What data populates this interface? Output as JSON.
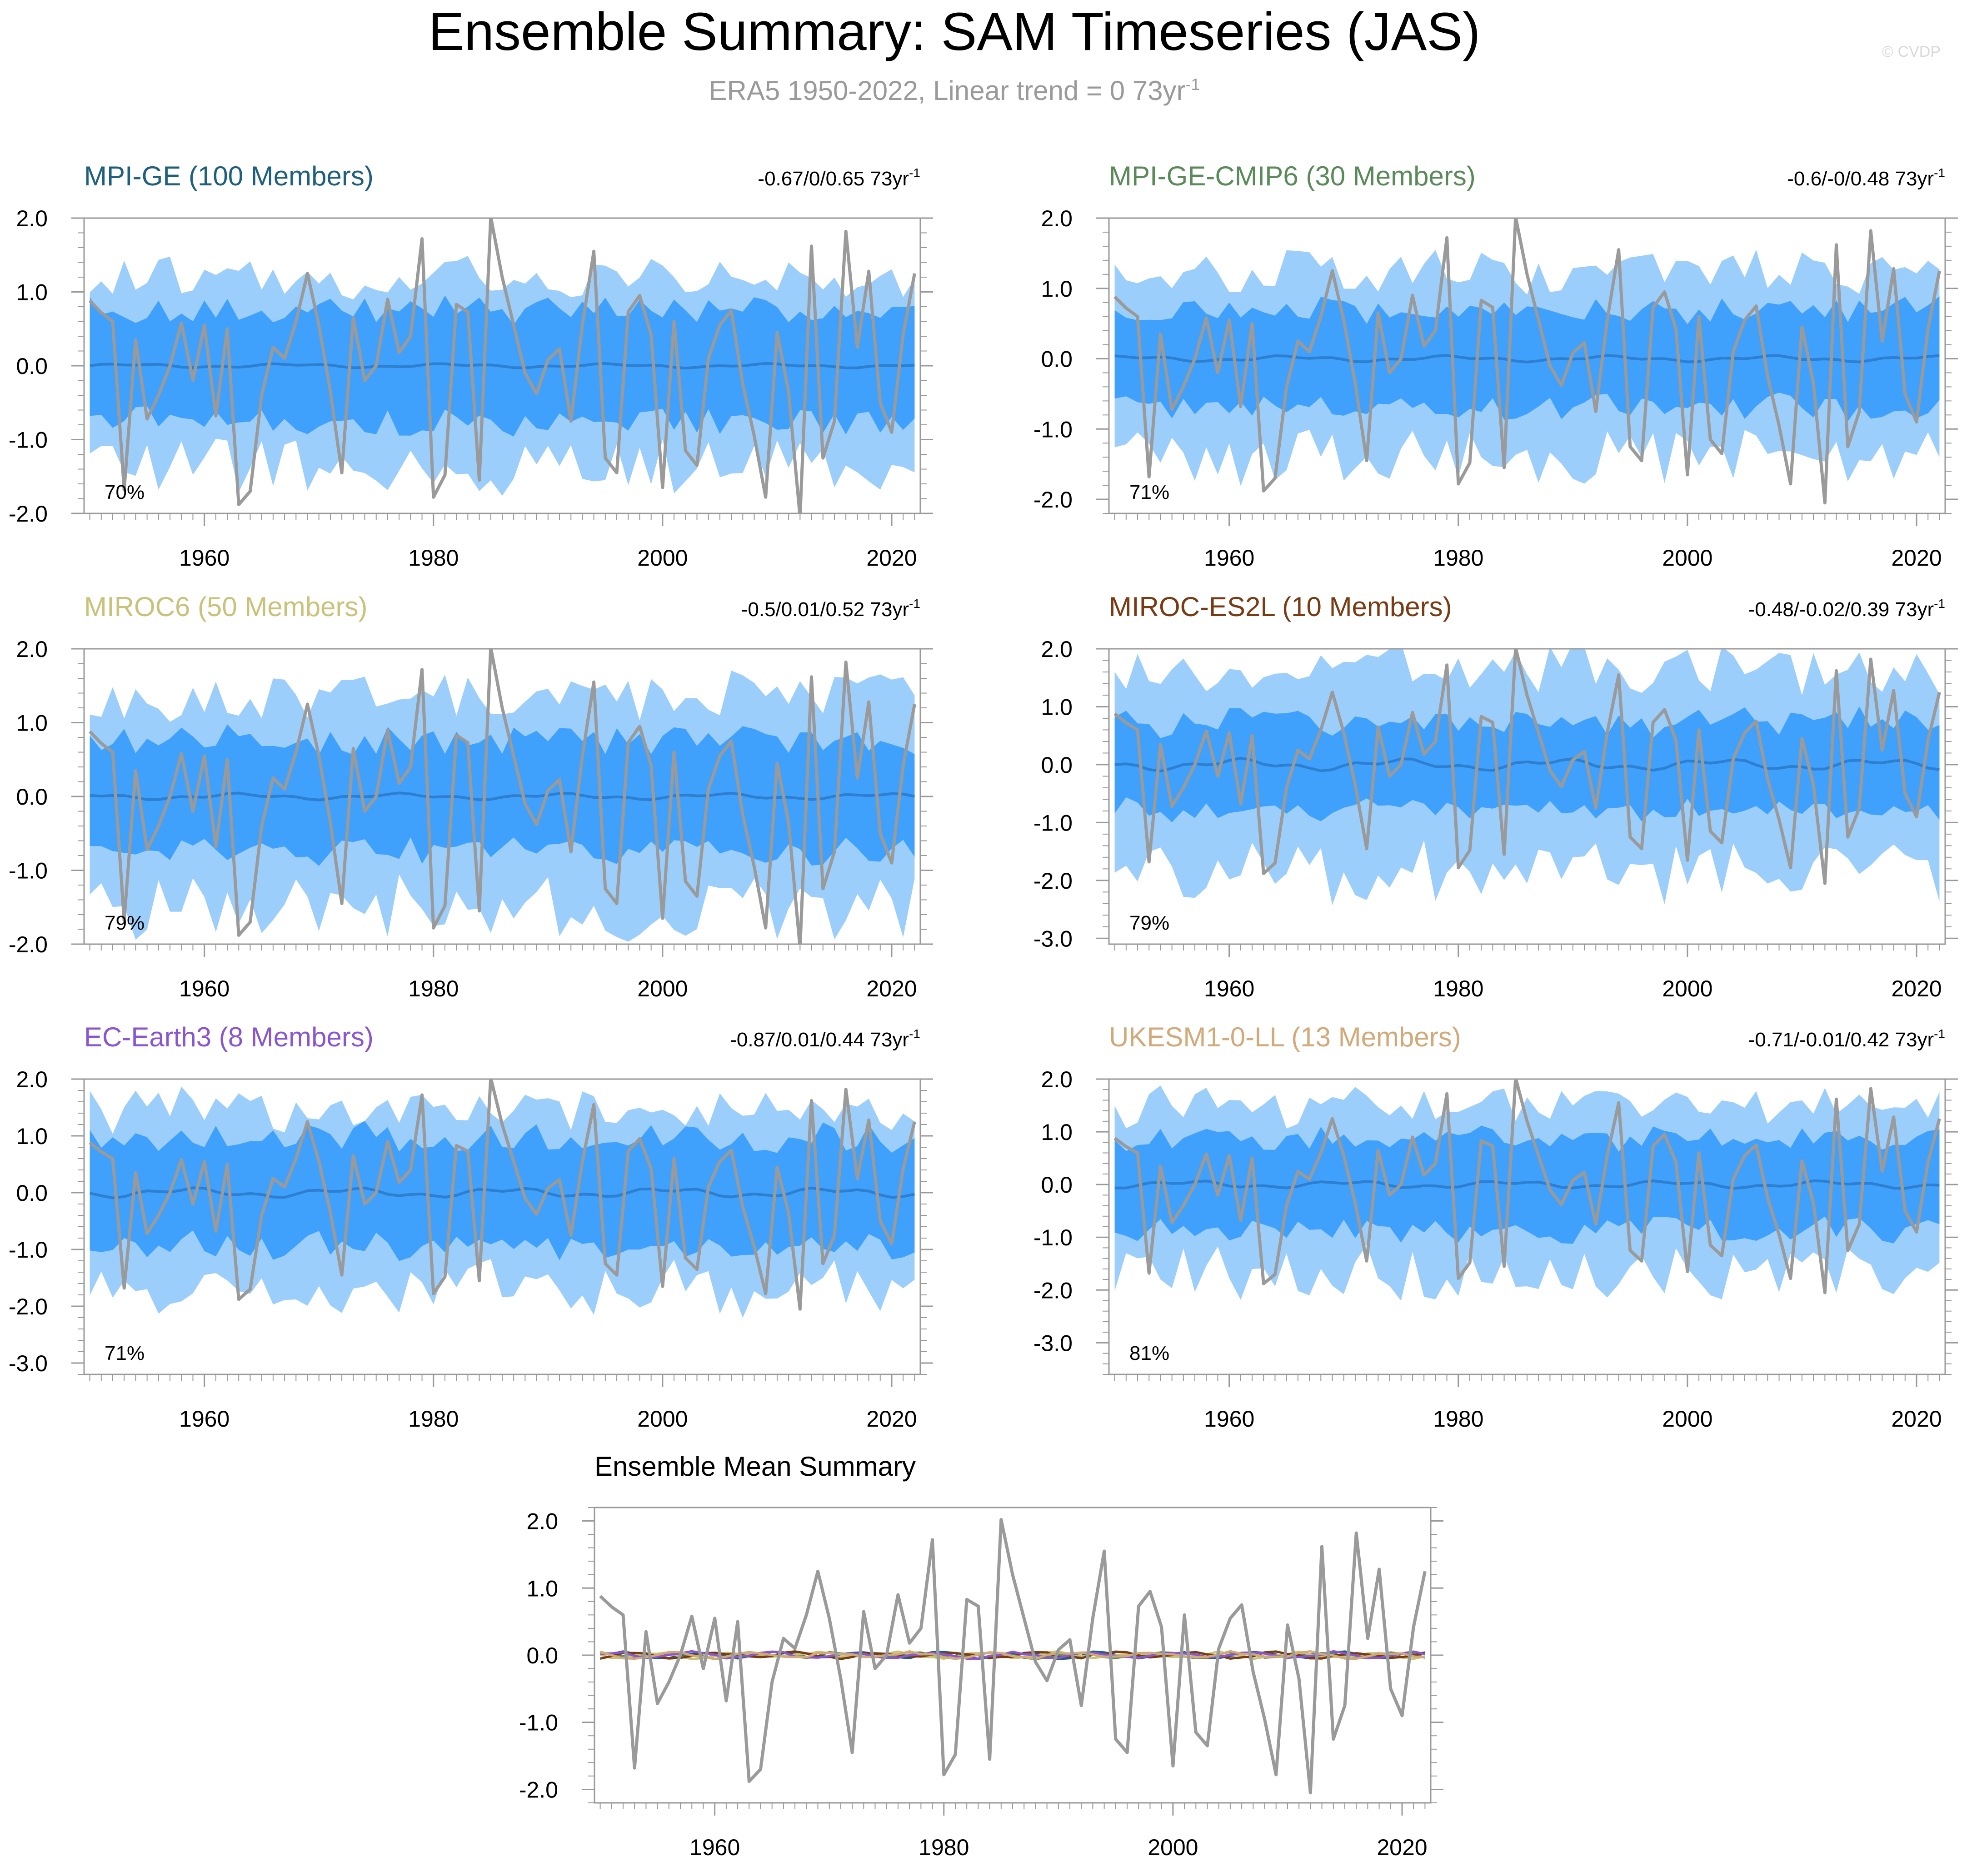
{
  "title": "Ensemble Summary: SAM Timeseries (JAS)",
  "subtitle": "ERA5 1950-2022, Linear trend = 0 73yr",
  "subtitle_sup": "-1",
  "watermark": "© CVDP",
  "colors": {
    "outer_band": "#9ccefc",
    "inner_band": "#3fa1fc",
    "ensemble_mean": "#2e7fd0",
    "observed": "#9a9a9a"
  },
  "chart_data": [
    {
      "type": "area",
      "id": "mpi-ge",
      "title": "MPI-GE (100 Members)",
      "title_color": "#1e5f7c",
      "trend": "-0.67/0/0.65 73yr",
      "trend_sup": "-1",
      "percent": "70%",
      "ylim": [
        -2.0,
        2.0
      ],
      "yticks": [
        "2.0",
        "1.0",
        "0.0",
        "-1.0",
        "-2.0"
      ],
      "ytick_values": [
        2,
        1,
        0,
        -1,
        -2
      ],
      "xticks": [
        "1960",
        "1980",
        "2000",
        "2020"
      ],
      "outer_half_width": 1.3,
      "inner_half_width": 0.75,
      "mean_amplitude": 0.02
    },
    {
      "type": "area",
      "id": "mpi-ge-cmip6",
      "title": "MPI-GE-CMIP6 (30 Members)",
      "title_color": "#5a8a5a",
      "trend": "-0.6/-0/0.48 73yr",
      "trend_sup": "-1",
      "percent": "71%",
      "ylim": [
        -2.2,
        2.0
      ],
      "yticks": [
        "2.0",
        "1.0",
        "0.0",
        "-1.0",
        "-2.0"
      ],
      "ytick_values": [
        2,
        1,
        0,
        -1,
        -2
      ],
      "xticks": [
        "1960",
        "1980",
        "2000",
        "2020"
      ],
      "outer_half_width": 1.35,
      "inner_half_width": 0.7,
      "mean_amplitude": 0.03
    },
    {
      "type": "area",
      "id": "miroc6",
      "title": "MIROC6 (50 Members)",
      "title_color": "#c9c27a",
      "trend": "-0.5/0.01/0.52 73yr",
      "trend_sup": "-1",
      "percent": "79%",
      "ylim": [
        -2.0,
        2.0
      ],
      "yticks": [
        "2.0",
        "1.0",
        "0.0",
        "-1.0",
        "-2.0"
      ],
      "ytick_values": [
        2,
        1,
        0,
        -1,
        -2
      ],
      "xticks": [
        "1960",
        "1980",
        "2000",
        "2020"
      ],
      "outer_half_width": 1.45,
      "inner_half_width": 0.75,
      "mean_amplitude": 0.03
    },
    {
      "type": "area",
      "id": "miroc-es2l",
      "title": "MIROC-ES2L (10 Members)",
      "title_color": "#7a3a12",
      "trend": "-0.48/-0.02/0.39 73yr",
      "trend_sup": "-1",
      "percent": "79%",
      "ylim": [
        -3.1,
        2.0
      ],
      "yticks": [
        "2.0",
        "1.0",
        "0.0",
        "-1.0",
        "-2.0",
        "-3.0"
      ],
      "ytick_values": [
        2,
        1,
        0,
        -1,
        -2,
        -3
      ],
      "xticks": [
        "1960",
        "1980",
        "2000",
        "2020"
      ],
      "outer_half_width": 1.75,
      "inner_half_width": 0.75,
      "mean_amplitude": 0.07
    },
    {
      "type": "area",
      "id": "ec-earth3",
      "title": "EC-Earth3 (8 Members)",
      "title_color": "#8a55d0",
      "trend": "-0.87/0.01/0.44 73yr",
      "trend_sup": "-1",
      "percent": "71%",
      "ylim": [
        -3.2,
        2.0
      ],
      "yticks": [
        "2.0",
        "1.0",
        "0.0",
        "-1.0",
        "-2.0",
        "-3.0"
      ],
      "ytick_values": [
        2,
        1,
        0,
        -1,
        -2,
        -3
      ],
      "xticks": [
        "1960",
        "1980",
        "2000",
        "2020"
      ],
      "outer_half_width": 1.6,
      "inner_half_width": 0.95,
      "mean_amplitude": 0.06
    },
    {
      "type": "area",
      "id": "ukesm1-0-ll",
      "title": "UKESM1-0-LL (13 Members)",
      "title_color": "#d2aa7a",
      "trend": "-0.71/-0.01/0.42 73yr",
      "trend_sup": "-1",
      "percent": "81%",
      "ylim": [
        -3.6,
        2.0
      ],
      "yticks": [
        "2.0",
        "1.0",
        "0.0",
        "-1.0",
        "-2.0",
        "-3.0"
      ],
      "ytick_values": [
        2,
        1,
        0,
        -1,
        -2,
        -3
      ],
      "xticks": [
        "1960",
        "1980",
        "2000",
        "2020"
      ],
      "outer_half_width": 1.6,
      "inner_half_width": 0.85,
      "mean_amplitude": 0.05
    },
    {
      "type": "line",
      "id": "ensemble-mean",
      "title": "Ensemble Mean Summary",
      "ylim": [
        -2.2,
        2.2
      ],
      "yticks": [
        "2.0",
        "1.0",
        "0.0",
        "-1.0",
        "-2.0"
      ],
      "ytick_values": [
        2,
        1,
        0,
        -1,
        -2
      ],
      "xticks": [
        "1960",
        "1980",
        "2000",
        "2020"
      ],
      "series_colors": [
        "#1e5f7c",
        "#5a8a5a",
        "#c9c27a",
        "#7a3a12",
        "#8a55d0",
        "#d2aa7a"
      ]
    }
  ],
  "x": {
    "start": 1950,
    "end": 2022,
    "xlim": [
      1949.5,
      2022.5
    ],
    "tick_years": [
      1960,
      1980,
      2000,
      2020
    ]
  },
  "observed": [
    0.88,
    0.72,
    0.6,
    -1.68,
    0.35,
    -0.72,
    -0.4,
    0.0,
    0.58,
    -0.2,
    0.55,
    -0.68,
    0.5,
    -1.88,
    -1.7,
    -0.4,
    0.25,
    0.1,
    0.6,
    1.25,
    0.55,
    -0.35,
    -1.45,
    0.65,
    -0.2,
    0.0,
    0.9,
    0.18,
    0.4,
    1.72,
    -1.78,
    -1.48,
    0.83,
    0.73,
    -1.55,
    2.02,
    1.2,
    0.55,
    -0.1,
    -0.38,
    0.08,
    0.23,
    -0.75,
    0.55,
    1.55,
    -1.25,
    -1.45,
    0.73,
    0.95,
    0.42,
    -1.65,
    0.6,
    -1.15,
    -1.35,
    0.1,
    0.55,
    0.75,
    -0.25,
    -0.95,
    -1.78,
    0.45,
    -0.35,
    -2.05,
    1.62,
    -1.25,
    -0.75,
    1.82,
    0.25,
    1.28,
    -0.5,
    -0.9,
    0.42,
    1.25
  ]
}
